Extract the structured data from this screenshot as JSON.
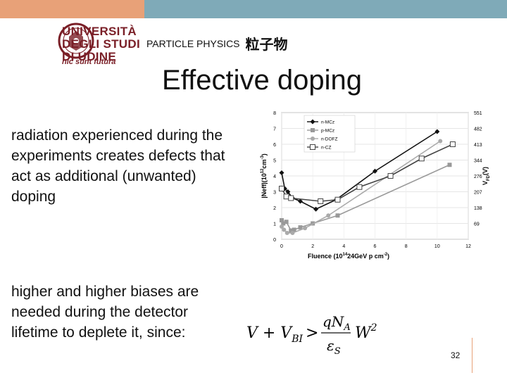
{
  "header": {
    "university_lines": [
      "UNIVERSITÀ",
      "DEGLI STUDI",
      "DI UDINE"
    ],
    "motto": "hic sunt futura",
    "subject": "PARTICLE PHYSICS",
    "subject_cn": "粒子物"
  },
  "slide": {
    "title": "Effective doping",
    "para1": "radiation experienced during the experiments creates defects that act as additional (unwanted) doping",
    "para2": "higher and higher biases are needed during the detector lifetime to deplete it, since:",
    "page_number": "32"
  },
  "colors": {
    "top_left_bar": "#e8a178",
    "top_right_bar": "#7faab8",
    "logo": "#7a1f27"
  },
  "chart_data": {
    "type": "line",
    "xlabel": "Fluence (10",
    "xlabel_exp": "14",
    "xlabel_tail": "24GeV p cm",
    "xlabel_exp2": "-2",
    "xlabel_end": ")",
    "ylabel": "|Neff|(10",
    "ylabel_exp": "12",
    "ylabel_tail": "cm",
    "ylabel_exp2": "-3",
    "ylabel_end": ")",
    "y2label": "V",
    "y2label_sub": "FD",
    "y2label_end": "(V)",
    "xlim": [
      0,
      12
    ],
    "ylim": [
      0,
      8
    ],
    "x_ticks": [
      "0",
      "2",
      "4",
      "6",
      "8",
      "10",
      "12"
    ],
    "y_ticks": [
      "0",
      "1",
      "2",
      "3",
      "4",
      "5",
      "6",
      "7",
      "8"
    ],
    "y2_ticks": [
      {
        "y": 1,
        "label": "69"
      },
      {
        "y": 2,
        "label": "138"
      },
      {
        "y": 3,
        "label": "207"
      },
      {
        "y": 4,
        "label": "276"
      },
      {
        "y": 5,
        "label": "344"
      },
      {
        "y": 6,
        "label": "413"
      },
      {
        "y": 7,
        "label": "482"
      },
      {
        "y": 8,
        "label": "551"
      }
    ],
    "grid": true,
    "legend_position": "top-left",
    "series": [
      {
        "name": "n-MCz",
        "color": "#111111",
        "marker": "diamond",
        "points": [
          [
            0,
            4.2
          ],
          [
            0.2,
            3.2
          ],
          [
            0.4,
            3.0
          ],
          [
            0.7,
            2.6
          ],
          [
            1.2,
            2.4
          ],
          [
            2.2,
            1.9
          ],
          [
            3.5,
            2.5
          ],
          [
            6,
            4.3
          ],
          [
            10,
            6.8
          ]
        ]
      },
      {
        "name": "p-MCz",
        "color": "#999999",
        "marker": "square-filled",
        "points": [
          [
            0,
            1.2
          ],
          [
            0.1,
            1.0
          ],
          [
            0.3,
            1.1
          ],
          [
            0.6,
            0.55
          ],
          [
            0.8,
            0.6
          ],
          [
            1.2,
            0.75
          ],
          [
            2,
            1.0
          ],
          [
            3.6,
            1.5
          ],
          [
            10.8,
            4.7
          ]
        ]
      },
      {
        "name": "n-DOFZ",
        "color": "#aaaaaa",
        "marker": "circle",
        "points": [
          [
            0,
            0.8
          ],
          [
            0.15,
            0.6
          ],
          [
            0.35,
            0.4
          ],
          [
            0.7,
            0.4
          ],
          [
            1.5,
            0.7
          ],
          [
            3,
            1.5
          ],
          [
            10.2,
            6.2
          ]
        ]
      },
      {
        "name": "n-CZ",
        "color": "#444444",
        "marker": "square-open",
        "points": [
          [
            0,
            3.2
          ],
          [
            0.3,
            2.7
          ],
          [
            0.6,
            2.6
          ],
          [
            2.5,
            2.4
          ],
          [
            3.6,
            2.5
          ],
          [
            5,
            3.3
          ],
          [
            7,
            4.0
          ],
          [
            9,
            5.1
          ],
          [
            11,
            6.0
          ]
        ]
      }
    ]
  },
  "formula": {
    "lhs": "V + V",
    "lhs_sub": "BI",
    "op": ">",
    "num": "qN",
    "num_sub": "A",
    "den": "ε",
    "den_sub": "S",
    "rhs": "W",
    "rhs_sup": "2"
  }
}
